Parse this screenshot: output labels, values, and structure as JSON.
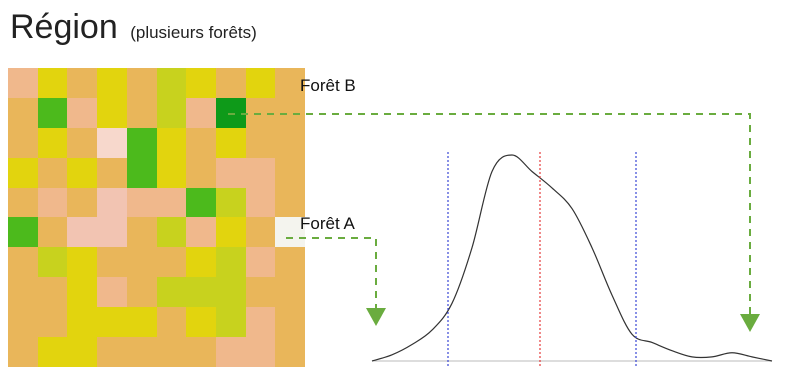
{
  "title": {
    "main": "Région",
    "sub": "(plusieurs forêts)"
  },
  "labels": {
    "foret_b": "Forêt B",
    "foret_a": "Forêt A"
  },
  "colors": {
    "arrow": "#6aac3f",
    "lines_outer": "#3a47d6",
    "line_center": "#e53b3b",
    "curve": "#333333",
    "baseline": "#bbbbbb",
    "highlight_a": "#f4f4ee",
    "highlight_b": "#0e9a19"
  },
  "grid": {
    "palette": {
      "o": "#e9b65a",
      "p": "#f0b88c",
      "y": "#e2d40e",
      "l": "#c8d21e",
      "g": "#4cba1c",
      "d": "#0e9a19",
      "k": "#f2c4b2",
      "w": "#f7d8cc",
      "a": "#f4f4ee"
    },
    "rows": [
      "pyoyolyoyo",
      "ogpyolpdoo",
      "oyowgyoyoo",
      "yoyogyoppo",
      "opokppglpo",
      "gokkolpyoa",
      "olyoooylpo",
      "ooypollloo",
      "ooyyyoylpo",
      "oyyooooppo"
    ]
  },
  "distribution": {
    "x": [
      0,
      5,
      10,
      15,
      20,
      25,
      30,
      35,
      40,
      45,
      50,
      55,
      60,
      65,
      70,
      75,
      80,
      85,
      90,
      95,
      100
    ],
    "y": [
      0.0,
      0.03,
      0.08,
      0.15,
      0.28,
      0.55,
      0.92,
      1.0,
      0.92,
      0.84,
      0.74,
      0.55,
      0.32,
      0.13,
      0.09,
      0.05,
      0.02,
      0.02,
      0.04,
      0.02,
      0.0
    ],
    "blue_lines_x": [
      19,
      66
    ],
    "red_line_x": [
      42
    ]
  }
}
